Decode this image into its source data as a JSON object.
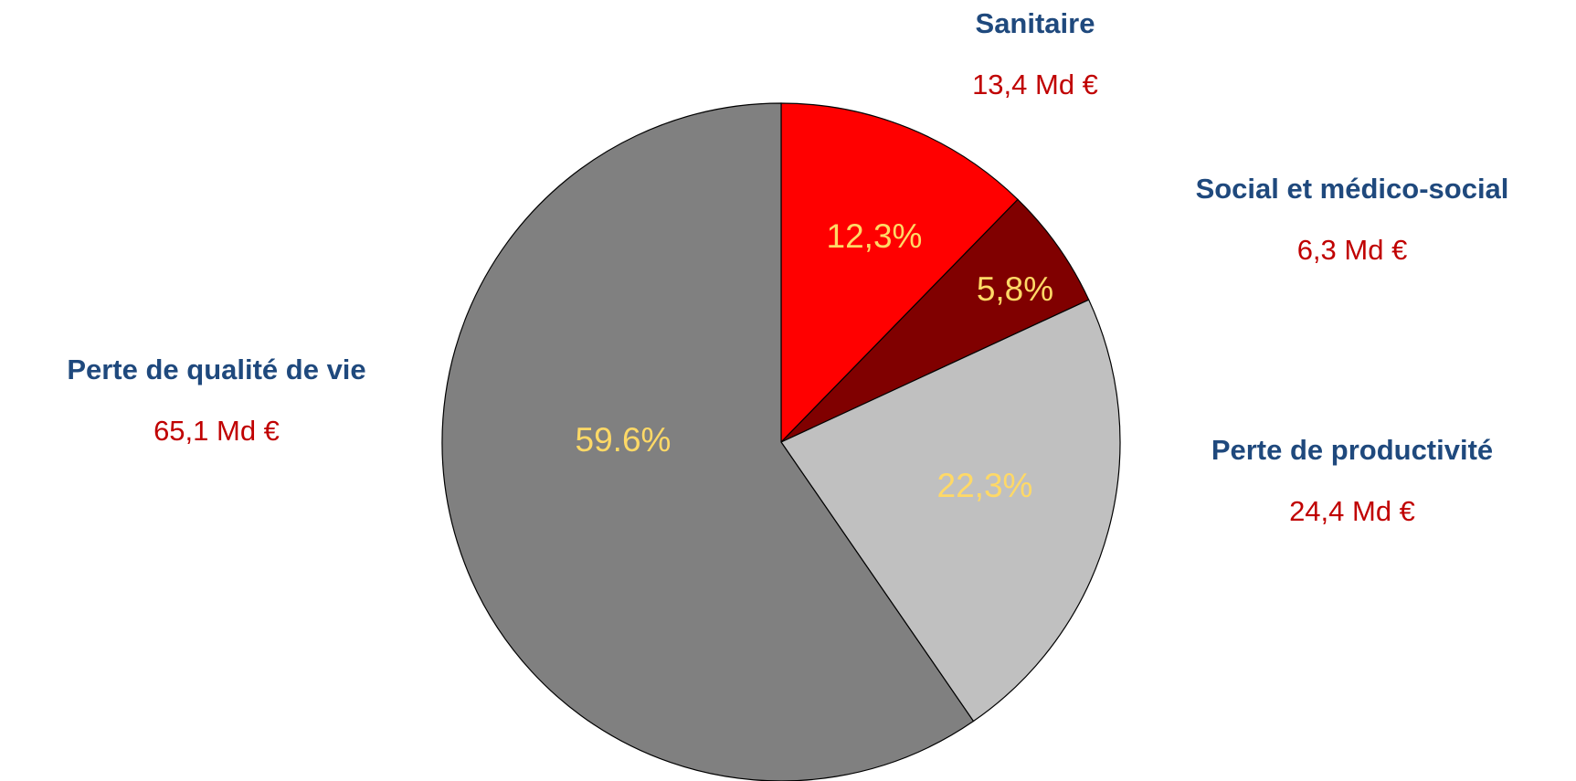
{
  "chart_data": {
    "type": "pie",
    "categories": [
      "Sanitaire",
      "Social et médico-social",
      "Perte de productivité",
      "Perte de qualité de vie"
    ],
    "values": [
      12.3,
      5.8,
      22.3,
      59.6
    ],
    "value_labels": [
      "12,3%",
      "5,8%",
      "22,3%",
      "59.6%"
    ],
    "amount_labels": [
      "13,4 Md €",
      "6,3 Md €",
      "24,4 Md €",
      "65,1 Md €"
    ],
    "colors": [
      "#ff0000",
      "#800000",
      "#c0c0c0",
      "#808080"
    ],
    "start_angle": 0,
    "direction": "clockwise"
  }
}
